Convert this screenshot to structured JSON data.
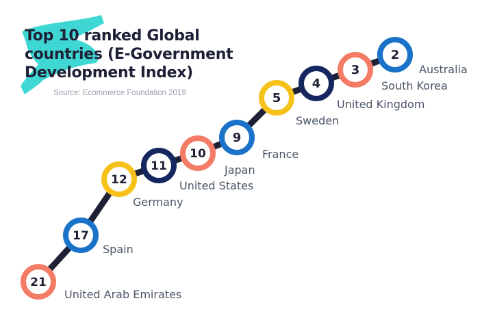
{
  "header": {
    "title_lines": [
      "Top 10 ranked Global",
      "countries (E-Government",
      "Development Index)"
    ],
    "source": "Source: Ecommerce Foundation 2019"
  },
  "colors": {
    "brush": "#2fd4d0",
    "title": "#1e2136",
    "country_label": "#4a5566",
    "source": "#9aa0ad",
    "connector": "#1e2136",
    "ring_navy": "#15275e",
    "ring_blue": "#1a73c9",
    "ring_coral": "#f47c66",
    "ring_yellow": "#f6c21a"
  },
  "chart_data": {
    "type": "ranked-path",
    "title": "Top 10 ranked Global countries (E-Government Development Index)",
    "source": "Source: Ecommerce Foundation 2019",
    "points": [
      {
        "country": "United Arab Emirates",
        "rank": 21,
        "color": "coral"
      },
      {
        "country": "Spain",
        "rank": 17,
        "color": "blue"
      },
      {
        "country": "Germany",
        "rank": 12,
        "color": "yellow"
      },
      {
        "country": "United States",
        "rank": 11,
        "color": "navy"
      },
      {
        "country": "Japan",
        "rank": 10,
        "color": "coral"
      },
      {
        "country": "France",
        "rank": 9,
        "color": "blue"
      },
      {
        "country": "Sweden",
        "rank": 5,
        "color": "yellow"
      },
      {
        "country": "United Kingdom",
        "rank": 4,
        "color": "navy"
      },
      {
        "country": "South Korea",
        "rank": 3,
        "color": "coral"
      },
      {
        "country": "Australia",
        "rank": 2,
        "color": "blue"
      }
    ]
  }
}
